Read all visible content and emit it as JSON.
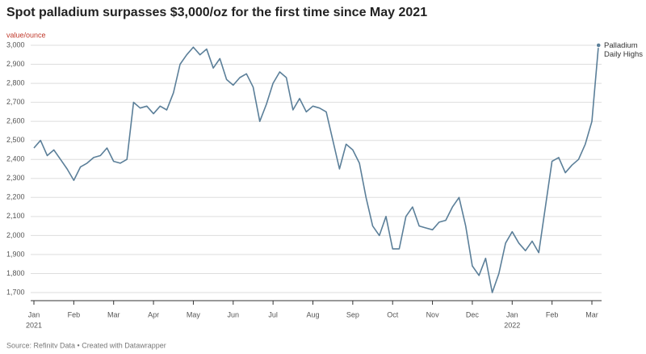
{
  "chart_data": {
    "type": "line",
    "title": "Spot palladium surpasses $3,000/oz for the first time since May 2021",
    "y_axis_label": "value/ounce",
    "source": "Source: Refinitv Data • Created with Datawrapper",
    "categories": [
      "Jan",
      null,
      null,
      null,
      null,
      null,
      "Feb",
      null,
      null,
      null,
      null,
      null,
      "Mar",
      null,
      null,
      null,
      null,
      null,
      "Apr",
      null,
      null,
      null,
      null,
      null,
      "May",
      null,
      null,
      null,
      null,
      null,
      "Jun",
      null,
      null,
      null,
      null,
      null,
      "Jul",
      null,
      null,
      null,
      null,
      null,
      "Aug",
      null,
      null,
      null,
      null,
      null,
      "Sep",
      null,
      null,
      null,
      null,
      null,
      "Oct",
      null,
      null,
      null,
      null,
      null,
      "Nov",
      null,
      null,
      null,
      null,
      null,
      "Dec",
      null,
      null,
      null,
      null,
      null,
      "Jan",
      null,
      null,
      null,
      null,
      null,
      "Feb",
      null,
      null,
      null,
      null,
      null,
      "Mar",
      null
    ],
    "years": [
      {
        "category": 0,
        "label": "2021"
      },
      {
        "category": 72,
        "label": "2022"
      }
    ],
    "series": [
      {
        "name": "Palladium Daily Highs",
        "color": "#5b7f99",
        "values": [
          2460,
          2500,
          2420,
          2450,
          2400,
          2350,
          2290,
          2360,
          2380,
          2410,
          2420,
          2460,
          2390,
          2380,
          2400,
          2700,
          2670,
          2680,
          2640,
          2680,
          2660,
          2750,
          2900,
          2950,
          2990,
          2950,
          2980,
          2880,
          2930,
          2820,
          2790,
          2830,
          2850,
          2780,
          2600,
          2690,
          2800,
          2860,
          2830,
          2660,
          2720,
          2650,
          2680,
          2670,
          2650,
          2500,
          2350,
          2480,
          2450,
          2380,
          2200,
          2050,
          2000,
          2100,
          1930,
          1930,
          2100,
          2150,
          2050,
          2040,
          2030,
          2070,
          2080,
          2150,
          2200,
          2050,
          1840,
          1790,
          1880,
          1700,
          1800,
          1960,
          2020,
          1960,
          1920,
          1970,
          1910,
          2150,
          2390,
          2410,
          2330,
          2370,
          2400,
          2480,
          2600,
          3000
        ]
      }
    ],
    "ylim": [
      1650,
      3000
    ],
    "yticks": [
      {
        "value": 1700,
        "label": "1,700"
      },
      {
        "value": 1800,
        "label": "1,800"
      },
      {
        "value": 1900,
        "label": "1,900"
      },
      {
        "value": 2000,
        "label": "2,000"
      },
      {
        "value": 2100,
        "label": "2,100"
      },
      {
        "value": 2200,
        "label": "2,200"
      },
      {
        "value": 2300,
        "label": "2,300"
      },
      {
        "value": 2400,
        "label": "2,400"
      },
      {
        "value": 2500,
        "label": "2,500"
      },
      {
        "value": 2600,
        "label": "2,600"
      },
      {
        "value": 2700,
        "label": "2,700"
      },
      {
        "value": 2800,
        "label": "2,800"
      },
      {
        "value": 2900,
        "label": "2,900"
      },
      {
        "value": 3000,
        "label": "3,000"
      }
    ],
    "grid": true
  }
}
